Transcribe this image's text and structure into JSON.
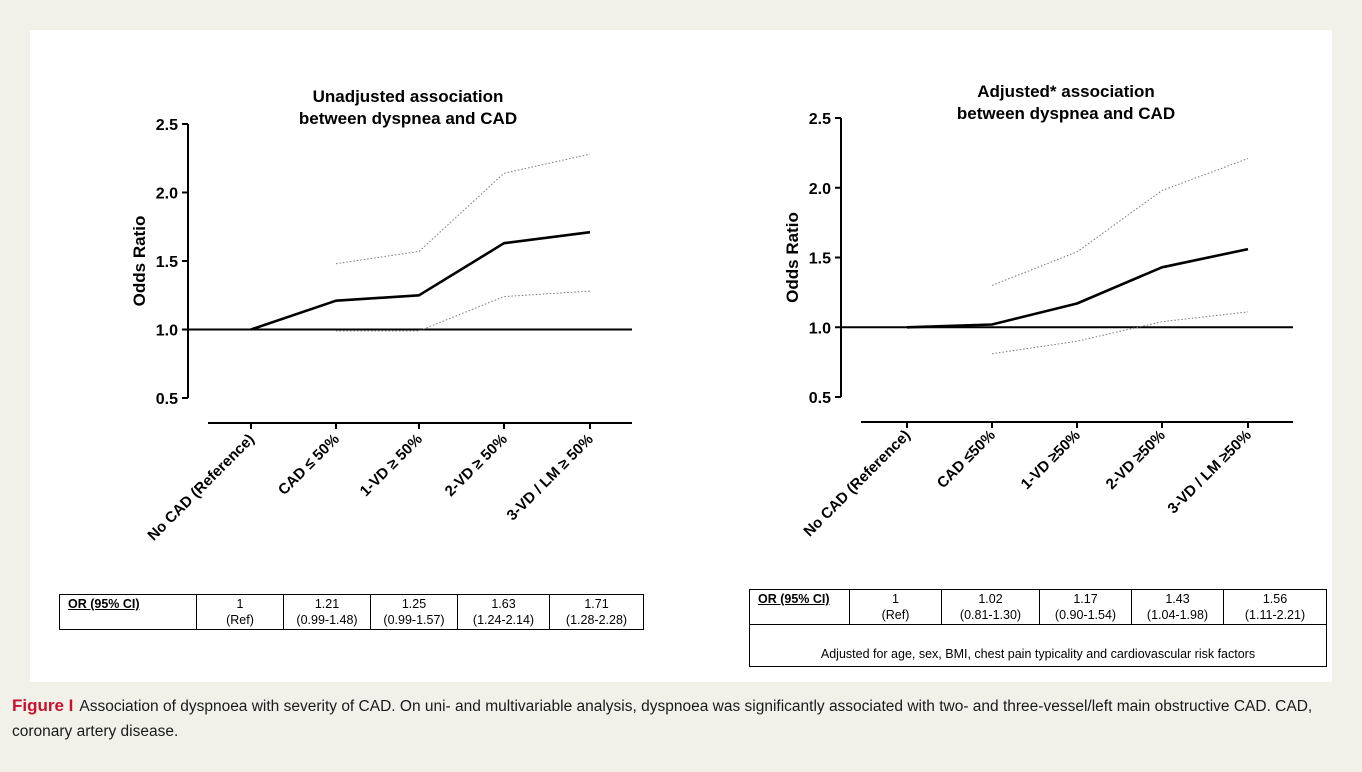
{
  "figure": {
    "label": "Figure I",
    "caption": "Association of dyspnoea with severity of CAD. On uni- and multivariable analysis, dyspnoea was significantly associated with two- and three-vessel/left main obstructive CAD. CAD, coronary artery disease."
  },
  "chart_data": [
    {
      "type": "line",
      "title_lines": [
        "Unadjusted association",
        "between dyspnea and CAD"
      ],
      "ylabel": "Odds Ratio",
      "xlabel": "",
      "ylim": [
        0.5,
        2.5
      ],
      "yticks": [
        "2.5",
        "2.0",
        "1.5",
        "1.0",
        "0.5"
      ],
      "reference_line": 1.0,
      "categories": [
        "No CAD (Reference)",
        "CAD ≤ 50%",
        "1-VD ≥ 50%",
        "2-VD ≥ 50%",
        "3-VD / LM ≥ 50%"
      ],
      "series": [
        {
          "style": "solid",
          "values": [
            1.0,
            1.21,
            1.25,
            1.63,
            1.71
          ]
        },
        {
          "style": "dotted-upper",
          "values": [
            null,
            1.48,
            1.57,
            2.14,
            2.28
          ]
        },
        {
          "style": "dotted-lower",
          "values": [
            null,
            0.99,
            0.99,
            1.24,
            1.28
          ]
        }
      ],
      "grid": false,
      "table": {
        "header": "OR (95% CI)",
        "cells": [
          [
            "1",
            "(Ref)"
          ],
          [
            "1.21",
            "(0.99-1.48)"
          ],
          [
            "1.25",
            "(0.99-1.57)"
          ],
          [
            "1.63",
            "(1.24-2.14)"
          ],
          [
            "1.71",
            "(1.28-2.28)"
          ]
        ]
      }
    },
    {
      "type": "line",
      "title_lines": [
        "Adjusted* association",
        "between dyspnea and CAD"
      ],
      "ylabel": "Odds Ratio",
      "xlabel": "",
      "ylim": [
        0.5,
        2.5
      ],
      "yticks": [
        "2.5",
        "2.0",
        "1.5",
        "1.0",
        "0.5"
      ],
      "reference_line": 1.0,
      "categories": [
        "No CAD (Reference)",
        "CAD ≤50%",
        "1-VD ≥50%",
        "2-VD ≥50%",
        "3-VD / LM ≥50%"
      ],
      "series": [
        {
          "style": "solid",
          "values": [
            1.0,
            1.02,
            1.17,
            1.43,
            1.56
          ]
        },
        {
          "style": "dotted-upper",
          "values": [
            null,
            1.3,
            1.54,
            1.98,
            2.21
          ]
        },
        {
          "style": "dotted-lower",
          "values": [
            null,
            0.81,
            0.9,
            1.04,
            1.11
          ]
        }
      ],
      "grid": false,
      "table": {
        "header": "OR (95% CI)",
        "cells": [
          [
            "1",
            "(Ref)"
          ],
          [
            "1.02",
            "(0.81-1.30)"
          ],
          [
            "1.17",
            "(0.90-1.54)"
          ],
          [
            "1.43",
            "(1.04-1.98)"
          ],
          [
            "1.56",
            "(1.11-2.21)"
          ]
        ],
        "footnote": "Adjusted for age, sex, BMI, chest pain typicality and cardiovascular risk factors"
      }
    }
  ]
}
